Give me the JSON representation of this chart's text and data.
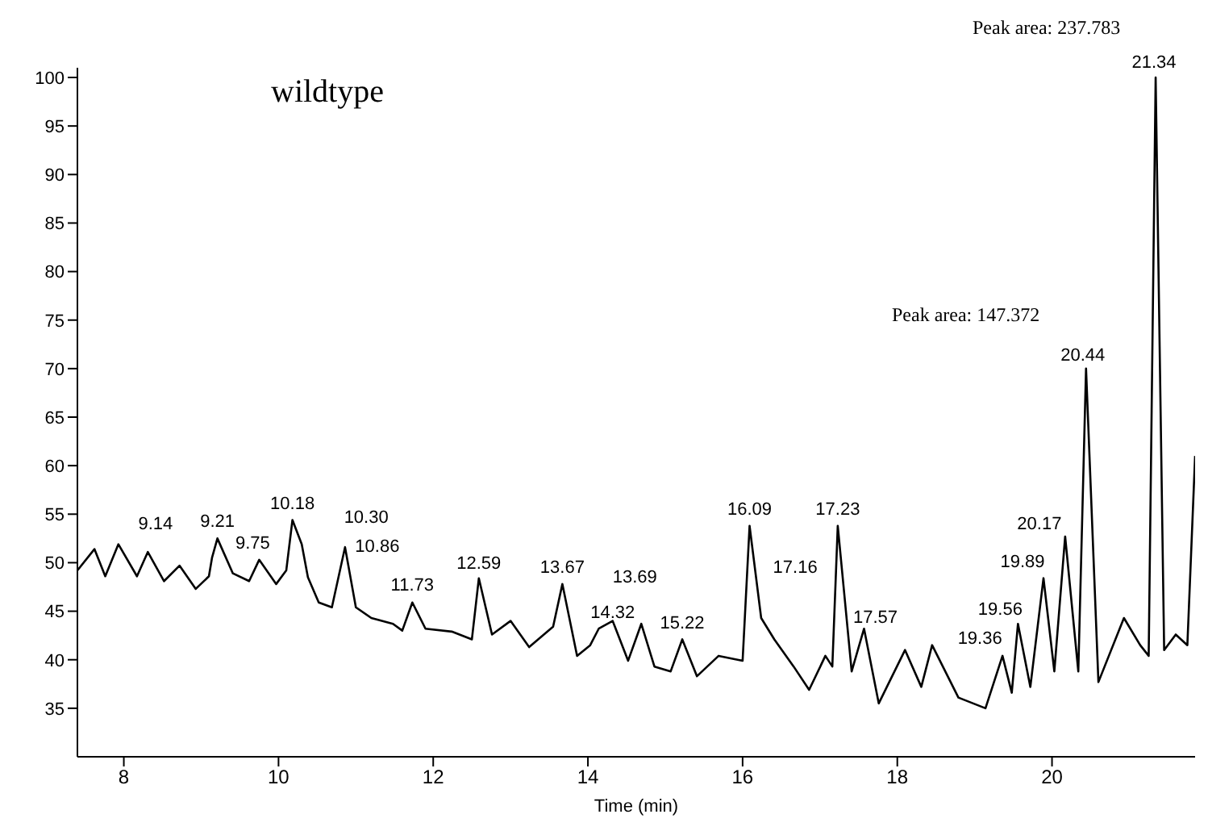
{
  "chart_data": {
    "type": "line",
    "xlabel": "Time (min)",
    "xlim": [
      7.4,
      21.85
    ],
    "xticks": [
      8,
      10,
      12,
      14,
      16,
      18,
      20
    ],
    "ylim": [
      30,
      101
    ],
    "yticks": [
      35,
      40,
      45,
      50,
      55,
      60,
      65,
      70,
      75,
      80,
      85,
      90,
      95,
      100
    ],
    "grid": false,
    "legend": false,
    "marker": "none",
    "line_style": "solid",
    "series": [
      {
        "color": "#000000",
        "x": [
          7.4,
          7.62,
          7.76,
          7.93,
          8.17,
          8.31,
          8.52,
          8.72,
          8.93,
          9.1,
          9.14,
          9.21,
          9.41,
          9.62,
          9.75,
          9.97,
          10.1,
          10.18,
          10.3,
          10.38,
          10.52,
          10.69,
          10.86,
          11.0,
          11.2,
          11.48,
          11.6,
          11.73,
          11.9,
          12.24,
          12.5,
          12.59,
          12.76,
          13.0,
          13.24,
          13.55,
          13.67,
          13.86,
          14.03,
          14.14,
          14.32,
          14.52,
          14.69,
          14.86,
          15.07,
          15.22,
          15.41,
          15.69,
          16.0,
          16.09,
          16.24,
          16.41,
          16.66,
          16.86,
          17.07,
          17.16,
          17.23,
          17.41,
          17.57,
          17.76,
          18.1,
          18.31,
          18.45,
          18.79,
          19.14,
          19.36,
          19.48,
          19.56,
          19.72,
          19.89,
          20.03,
          20.17,
          20.34,
          20.44,
          20.6,
          20.93,
          21.14,
          21.25,
          21.34,
          21.45,
          21.6,
          21.75,
          21.85
        ],
        "values": [
          49.2,
          51.4,
          48.6,
          51.9,
          48.6,
          51.1,
          48.1,
          49.7,
          47.3,
          48.6,
          50.5,
          52.5,
          48.9,
          48.1,
          50.3,
          47.8,
          49.2,
          54.4,
          51.9,
          48.5,
          45.9,
          45.4,
          51.6,
          45.4,
          44.3,
          43.7,
          43.0,
          45.9,
          43.2,
          42.9,
          42.1,
          48.4,
          42.6,
          44.0,
          41.3,
          43.4,
          47.8,
          40.4,
          41.5,
          43.2,
          44.0,
          39.9,
          43.7,
          39.3,
          38.8,
          42.1,
          38.3,
          40.4,
          39.9,
          53.8,
          44.3,
          42.1,
          39.3,
          36.9,
          40.4,
          39.3,
          53.8,
          38.8,
          43.2,
          35.5,
          41.0,
          37.2,
          41.5,
          36.1,
          35.0,
          40.4,
          36.6,
          43.7,
          37.2,
          48.4,
          38.8,
          52.7,
          38.8,
          70.0,
          37.7,
          44.3,
          41.5,
          40.4,
          100.0,
          41.0,
          42.6,
          41.5,
          61.0
        ]
      }
    ],
    "annotations": [
      "wildtype",
      "Peak area: 237.783",
      "Peak area: 147.372",
      {
        "text": "9.14",
        "x": 9.14,
        "y": 53.1
      },
      {
        "text": "9.21",
        "x": 9.21,
        "y": 53.4
      },
      {
        "text": "9.75",
        "x": 9.75,
        "y": 51.1
      },
      {
        "text": "10.18",
        "x": 10.18,
        "y": 55.2
      },
      {
        "text": "10.30",
        "x": 10.3,
        "y": 53.8
      },
      {
        "text": "10.86",
        "x": 10.86,
        "y": 50.8
      },
      {
        "text": "11.73",
        "x": 11.73,
        "y": 46.8
      },
      {
        "text": "12.59",
        "x": 12.59,
        "y": 49.0
      },
      {
        "text": "13.67",
        "x": 13.67,
        "y": 48.6
      },
      {
        "text": "13.69",
        "x": 13.69,
        "y": 47.6
      },
      {
        "text": "14.32",
        "x": 14.32,
        "y": 44.0
      },
      {
        "text": "15.22",
        "x": 15.22,
        "y": 42.9
      },
      {
        "text": "16.09",
        "x": 16.09,
        "y": 54.6
      },
      {
        "text": "17.16",
        "x": 17.16,
        "y": 48.6
      },
      {
        "text": "17.23",
        "x": 17.23,
        "y": 54.6
      },
      {
        "text": "17.57",
        "x": 17.57,
        "y": 43.5
      },
      {
        "text": "19.36",
        "x": 19.36,
        "y": 41.3
      },
      {
        "text": "19.56",
        "x": 19.56,
        "y": 44.3
      },
      {
        "text": "19.89",
        "x": 19.89,
        "y": 49.2
      },
      {
        "text": "20.17",
        "x": 20.17,
        "y": 53.1
      },
      {
        "text": "20.44",
        "x": 20.44,
        "y": 70.5
      },
      {
        "text": "21.34",
        "x": 21.34,
        "y": 100.7
      }
    ]
  }
}
